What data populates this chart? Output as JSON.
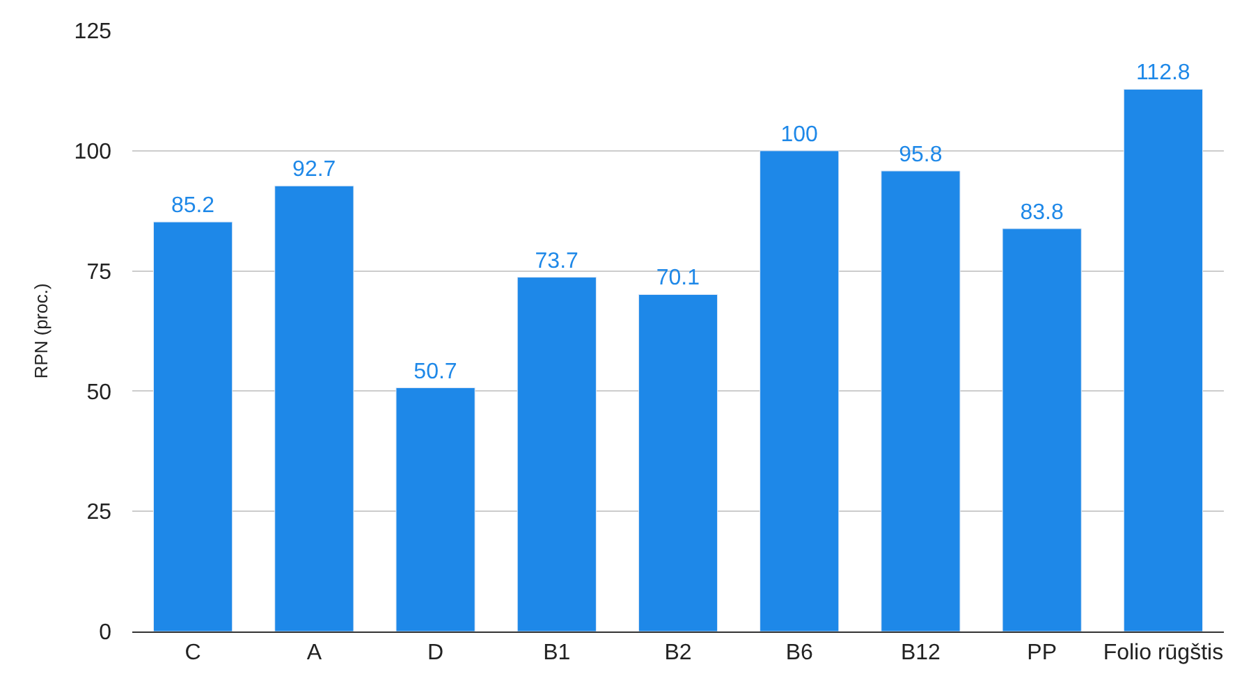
{
  "chart_data": {
    "type": "bar",
    "ylabel": "RPN (proc.)",
    "categories": [
      "C",
      "A",
      "D",
      "B1",
      "B2",
      "B6",
      "B12",
      "PP",
      "Folio rūgštis"
    ],
    "values": [
      85.2,
      92.7,
      50.7,
      73.7,
      70.1,
      100,
      95.8,
      83.8,
      112.8
    ],
    "color": "#1e88e8",
    "ylim": [
      0,
      125
    ],
    "yticks": [
      0,
      25,
      50,
      75,
      100,
      125
    ],
    "grid": "y",
    "data_labels": true,
    "legend": false
  }
}
